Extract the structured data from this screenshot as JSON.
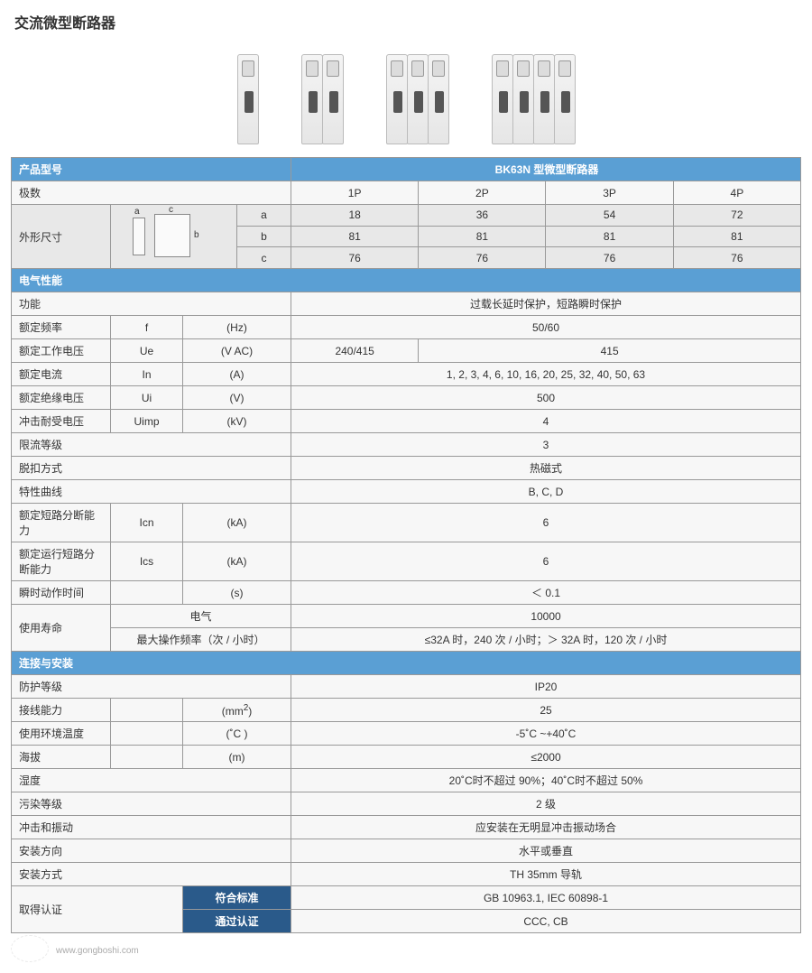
{
  "title": "交流微型断路器",
  "header": {
    "model_label": "产品型号",
    "model_value": "BK63N 型微型断路器"
  },
  "poles_row": {
    "label": "极数",
    "v": [
      "1P",
      "2P",
      "3P",
      "4P"
    ]
  },
  "dims": {
    "label": "外形尺寸",
    "rows": [
      {
        "k": "a",
        "v": [
          "18",
          "36",
          "54",
          "72"
        ]
      },
      {
        "k": "b",
        "v": [
          "81",
          "81",
          "81",
          "81"
        ]
      },
      {
        "k": "c",
        "v": [
          "76",
          "76",
          "76",
          "76"
        ]
      }
    ]
  },
  "elec_header": "电气性能",
  "elec": [
    {
      "label": "功能",
      "sym": "",
      "unit": "",
      "span": 4,
      "val": "过载长延时保护，短路瞬时保护"
    },
    {
      "label": "额定频率",
      "sym": "f",
      "unit": "(Hz)",
      "span": 4,
      "val": "50/60"
    },
    {
      "label": "额定工作电压",
      "sym": "Ue",
      "unit": "(V AC)",
      "cells": [
        "240/415",
        "415"
      ],
      "spans": [
        1,
        3
      ]
    },
    {
      "label": "额定电流",
      "sym": "In",
      "unit": "(A)",
      "span": 4,
      "val": "1, 2, 3, 4, 6, 10, 16, 20, 25, 32, 40, 50, 63"
    },
    {
      "label": "额定绝缘电压",
      "sym": "Ui",
      "unit": "(V)",
      "span": 4,
      "val": "500"
    },
    {
      "label": "冲击耐受电压",
      "sym": "Uimp",
      "unit": "(kV)",
      "span": 4,
      "val": "4"
    },
    {
      "label": "限流等级",
      "sym": "",
      "unit": "",
      "span": 4,
      "val": "3"
    },
    {
      "label": "脱扣方式",
      "sym": "",
      "unit": "",
      "span": 4,
      "val": "热磁式"
    },
    {
      "label": "特性曲线",
      "sym": "",
      "unit": "",
      "span": 4,
      "val": "B, C, D"
    },
    {
      "label": "额定短路分断能力",
      "sym": "Icn",
      "unit": "(kA)",
      "span": 4,
      "val": "6"
    },
    {
      "label": "额定运行短路分断能力",
      "sym": "Ics",
      "unit": "(kA)",
      "span": 4,
      "val": "6"
    },
    {
      "label": "瞬时动作时间",
      "sym": "",
      "unit": "(s)",
      "span": 4,
      "val": "＜ 0.1"
    }
  ],
  "life": {
    "label": "使用寿命",
    "r1": {
      "k": "电气",
      "val": "10000"
    },
    "r2": {
      "k": "最大操作频率（次 / 小时）",
      "val": "≤32A 时，240 次 / 小时；＞ 32A 时，120 次 / 小时"
    }
  },
  "conn_header": "连接与安装",
  "conn": [
    {
      "label": "防护等级",
      "sym": "",
      "unit": "",
      "val": "IP20"
    },
    {
      "label": "接线能力",
      "sym": "",
      "unit": "(mm²)",
      "val": "25"
    },
    {
      "label": "使用环境温度",
      "sym": "",
      "unit": "(˚C )",
      "val": "-5˚C ~+40˚C"
    },
    {
      "label": "海拔",
      "sym": "",
      "unit": "(m)",
      "val": "≤2000"
    },
    {
      "label": "湿度",
      "sym": "",
      "unit": "",
      "val": "20˚C时不超过 90%；40˚C时不超过 50%"
    },
    {
      "label": "污染等级",
      "sym": "",
      "unit": "",
      "val": "2 级"
    },
    {
      "label": "冲击和振动",
      "sym": "",
      "unit": "",
      "val": "应安装在无明显冲击振动场合"
    },
    {
      "label": "安装方向",
      "sym": "",
      "unit": "",
      "val": "水平或垂直"
    },
    {
      "label": "安装方式",
      "sym": "",
      "unit": "",
      "val": "TH 35mm 导轨"
    }
  ],
  "cert": {
    "label": "取得认证",
    "r1": {
      "k": "符合标准",
      "val": "GB 10963.1, IEC 60898-1"
    },
    "r2": {
      "k": "通过认证",
      "val": "CCC, CB"
    }
  },
  "watermark": "www.gongboshi.com",
  "colors": {
    "header_blue": "#5a9fd4",
    "header_darkblue": "#2a5a8a",
    "row_gray": "#e8e8e8",
    "border": "#999999"
  }
}
